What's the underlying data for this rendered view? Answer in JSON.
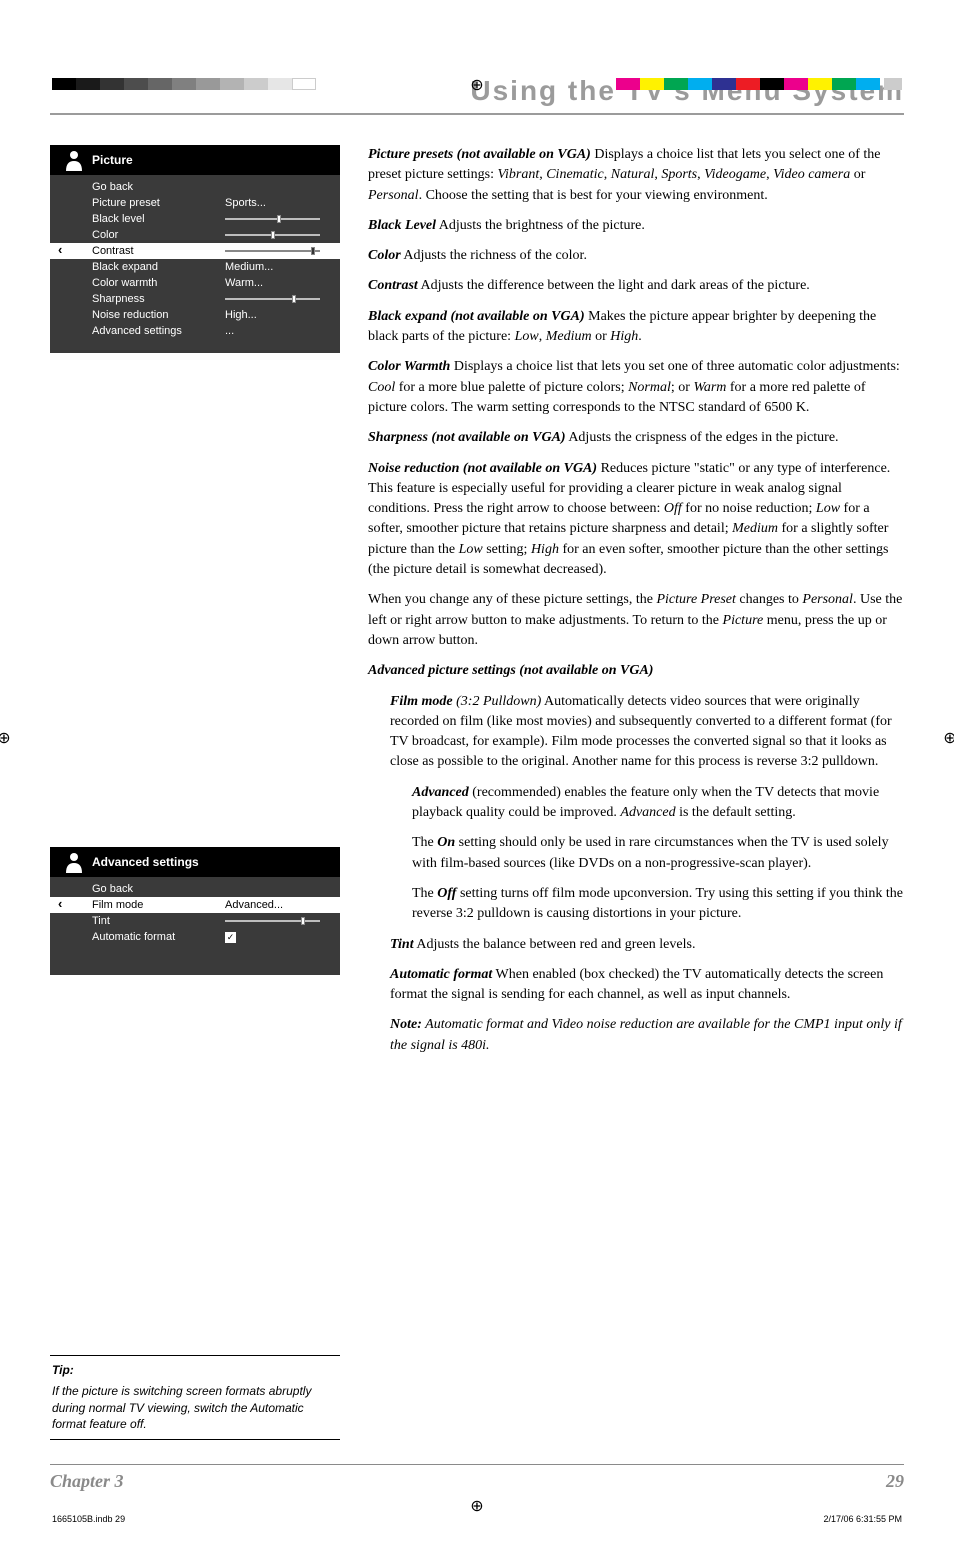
{
  "title": "Using the TV's Menu System",
  "calibration": {
    "left_colors": [
      "#000000",
      "#1a1a1a",
      "#333333",
      "#4d4d4d",
      "#666666",
      "#808080",
      "#999999",
      "#b3b3b3",
      "#cccccc",
      "#e6e6e6",
      "#ffffff"
    ],
    "right_colors": [
      "#ec008c",
      "#fff200",
      "#00a651",
      "#00aeef",
      "#2e3192",
      "#ed1c24",
      "#000000",
      "#ec008c",
      "#fff200",
      "#00a651",
      "#00aeef"
    ],
    "last_gray": "#cccccc"
  },
  "menu1": {
    "header": "Picture",
    "rows": [
      {
        "label": "Go back",
        "type": "text",
        "value": ""
      },
      {
        "label": "Picture preset",
        "type": "text",
        "value": "Sports..."
      },
      {
        "label": "Black level",
        "type": "slider",
        "pos": 55
      },
      {
        "label": "Color",
        "type": "slider",
        "pos": 48
      },
      {
        "label": "Contrast",
        "type": "slider",
        "pos": 90,
        "selected": true
      },
      {
        "label": "Black expand",
        "type": "text",
        "value": "Medium..."
      },
      {
        "label": "Color warmth",
        "type": "text",
        "value": "Warm..."
      },
      {
        "label": "Sharpness",
        "type": "slider",
        "pos": 70
      },
      {
        "label": "Noise reduction",
        "type": "text",
        "value": "High..."
      },
      {
        "label": "Advanced settings",
        "type": "text",
        "value": "..."
      }
    ]
  },
  "menu2": {
    "header": "Advanced settings",
    "rows": [
      {
        "label": "Go back",
        "type": "text",
        "value": ""
      },
      {
        "label": "Film mode",
        "type": "text",
        "value": "Advanced...",
        "selected": true
      },
      {
        "label": "Tint",
        "type": "slider",
        "pos": 80
      },
      {
        "label": "Automatic format",
        "type": "check",
        "checked": true
      }
    ]
  },
  "tip": {
    "label": "Tip:",
    "text": "If the picture is switching screen formats abruptly during normal TV viewing, switch the Automatic format feature off."
  },
  "body": {
    "p1": {
      "term": "Picture presets (not available on VGA)",
      "rest": "    Displays a choice list that lets you select one of the preset picture settings: ",
      "i1": "Vibrant",
      "c1": ", ",
      "i2": "Cinematic",
      "c2": ", ",
      "i3": "Natural",
      "c3": ", ",
      "i4": "Sports",
      "c4": ", ",
      "i5": "Videogame",
      "c5": ", ",
      "i6": "Video camera",
      "c6": " or ",
      "i7": "Personal",
      "end": ". Choose the setting that is best for your viewing environment."
    },
    "p2": {
      "term": "Black Level",
      "rest": "    Adjusts the brightness of the picture."
    },
    "p3": {
      "term": "Color",
      "rest": "    Adjusts the richness of the color."
    },
    "p4": {
      "term": "Contrast",
      "rest": "    Adjusts the difference between the light and dark areas of the picture."
    },
    "p5": {
      "term": "Black expand (not available on VGA)",
      "rest": "    Makes the picture appear brighter by deepening the black parts of the picture: ",
      "i1": "Low",
      "c1": ", ",
      "i2": "Medium",
      "c2": " or ",
      "i3": "High",
      "end": "."
    },
    "p6": {
      "term": "Color Warmth",
      "rest": "   Displays a choice list that lets you set one of three automatic color adjustments: ",
      "i1": "Cool",
      "c1": " for a more blue palette of picture colors; ",
      "i2": "Normal",
      "c2": "; or ",
      "i3": "Warm",
      "end": " for a more red palette of picture colors. The warm setting corresponds to the NTSC standard of 6500 K."
    },
    "p7": {
      "term": "Sharpness (not available on VGA)",
      "rest": "    Adjusts the crispness of the edges in the picture."
    },
    "p8": {
      "term": "Noise reduction (not available on VGA)",
      "rest": "    Reduces picture \"static\" or any type of interference. This feature is especially useful for providing a clearer picture in weak analog signal conditions. Press the right arrow to choose between: ",
      "i1": "Off",
      "c1": " for no noise reduction; ",
      "i2": "Low",
      "c2": " for a softer, smoother picture that retains picture sharpness and detail; ",
      "i3": "Medium",
      "c3": " for a slightly softer picture than the ",
      "i4": "Low",
      "c4": " setting; ",
      "i5": "High",
      "end": " for an even softer, smoother picture than the other settings (the picture detail is somewhat decreased)."
    },
    "p9a": "When you change any of these picture settings, the ",
    "p9i1": "Picture Preset",
    "p9b": " changes to ",
    "p9i2": "Personal",
    "p9c": ". Use the left or right arrow button to make adjustments. To return to the ",
    "p9i3": "Picture",
    "p9d": " menu, press the up or down arrow button.",
    "sub": "Advanced picture settings (not available on VGA)",
    "p10": {
      "term": "Film mode",
      "mid": " (3:2 Pulldown)",
      "rest": "    Automatically detects video sources that were originally recorded on film (like most movies) and subsequently converted to a different format (for TV broadcast, for example). Film mode processes the converted signal so that it looks as close as possible to the original. Another name for this process is reverse 3:2 pulldown."
    },
    "p11": {
      "term": "Advanced",
      "rest": " (recommended) enables the feature only when the TV detects that movie playback quality could be improved. ",
      "i1": "Advanced",
      "end": " is the default setting."
    },
    "p12a": "The ",
    "p12b": "On",
    "p12c": " setting should only be used in rare circumstances when the TV is used solely with film-based sources (like DVDs on a non-progressive-scan player).",
    "p13a": "The ",
    "p13b": "Off",
    "p13c": " setting turns off film mode upconversion. Try using this setting if you think the reverse 3:2 pulldown is causing distortions in your picture.",
    "p14": {
      "term": "Tint",
      "rest": "    Adjusts the balance between red and green levels."
    },
    "p15": {
      "term": "Automatic format",
      "rest": "    When enabled (box checked) the TV automatically detects the screen format the signal is sending for each channel, as well as input channels."
    },
    "p16": {
      "term": "Note:",
      "rest": " Automatic format and Video noise reduction are available for the CMP1 input only if the signal is 480i."
    }
  },
  "footer": {
    "chapter": "Chapter 3",
    "page": "29"
  },
  "meta": {
    "file": "1665105B.indb   29",
    "stamp": "2/17/06   6:31:55 PM"
  }
}
